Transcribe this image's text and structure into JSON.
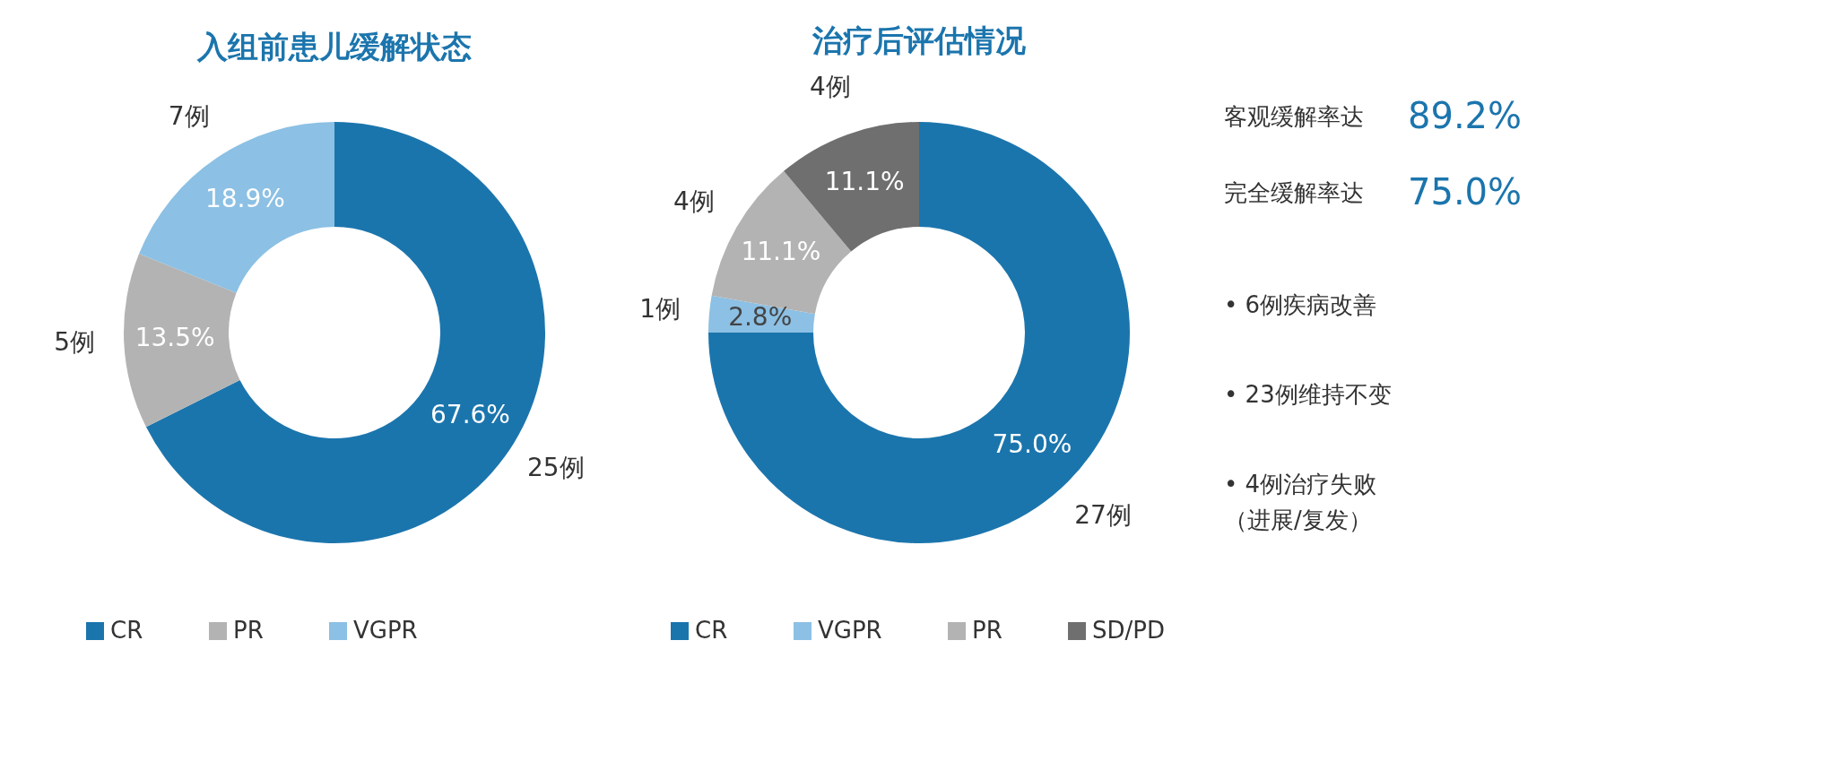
{
  "chart_data": [
    {
      "type": "donut",
      "title": "入组前患儿缓解状态",
      "categories": [
        "CR",
        "PR",
        "VGPR"
      ],
      "values": [
        67.6,
        13.5,
        18.9
      ],
      "colors": [
        "#1b75ad",
        "#b3b3b3",
        "#8cc0e4"
      ],
      "value_labels": [
        "67.6%",
        "13.5%",
        "18.9%"
      ],
      "legend": "bottom",
      "annotations": [
        "25例",
        "5例",
        "7例"
      ]
    },
    {
      "type": "donut",
      "title": "治疗后评估情况",
      "categories": [
        "CR",
        "VGPR",
        "PR",
        "SD/PD"
      ],
      "values": [
        75.0,
        2.8,
        11.1,
        11.1
      ],
      "colors": [
        "#1b75ad",
        "#8cc0e4",
        "#b3b3b3",
        "#6f6f6f"
      ],
      "value_labels": [
        "75.0%",
        "2.8%",
        "11.1%",
        "11.1%"
      ],
      "legend": "bottom",
      "annotations": [
        "27例",
        "1例",
        "4例",
        "4例"
      ]
    },
    {
      "type": "other",
      "annotations": [
        "客观缓解率达 89.2%",
        "完全缓解率达 75.0%",
        "• 6例疾病改善",
        "• 23例维持不变",
        "• 4例治疗失败",
        "（进展/复发）"
      ]
    }
  ]
}
